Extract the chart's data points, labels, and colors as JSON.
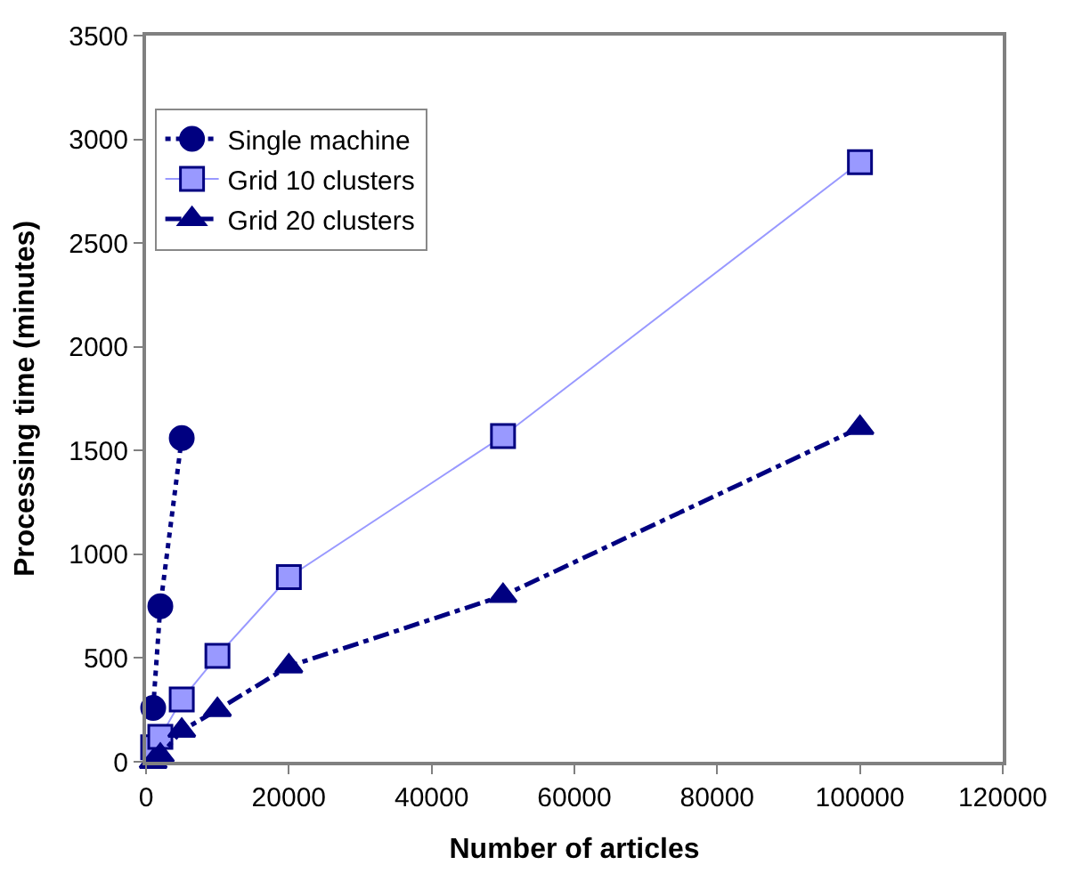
{
  "chart_data": {
    "type": "line",
    "xlabel": "Number of articles",
    "ylabel": "Processing time (minutes)",
    "xlim": [
      0,
      120000
    ],
    "xticks": [
      0,
      20000,
      40000,
      60000,
      80000,
      100000,
      120000
    ],
    "ylim": [
      0,
      3500
    ],
    "yticks": [
      0,
      500,
      1000,
      1500,
      2000,
      2500,
      3000,
      3500
    ],
    "legend": "top left",
    "series": [
      {
        "name": "Single machine",
        "color": "#000080",
        "marker": "circle",
        "line_style": "dotted",
        "x": [
          1000,
          2000,
          5000
        ],
        "values": [
          260,
          750,
          1560
        ]
      },
      {
        "name": "Grid 10 clusters",
        "color": "#9999ff",
        "marker": "square",
        "line_style": "solid",
        "x": [
          1000,
          2000,
          5000,
          10000,
          20000,
          50000,
          100000
        ],
        "values": [
          70,
          120,
          300,
          510,
          890,
          1570,
          2890
        ]
      },
      {
        "name": "Grid 20 clusters",
        "color": "#000080",
        "marker": "triangle",
        "line_style": "dashed",
        "x": [
          1000,
          2000,
          5000,
          10000,
          20000,
          50000,
          100000
        ],
        "values": [
          0,
          30,
          150,
          250,
          460,
          800,
          1610
        ]
      }
    ]
  }
}
